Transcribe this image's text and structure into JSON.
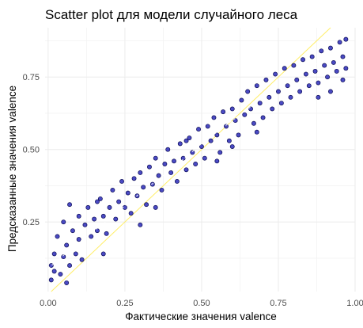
{
  "chart_data": {
    "type": "scatter",
    "title": "Scatter plot для модели случайного леса",
    "xlabel": "Фактические значения valence",
    "ylabel": "Предсказанные значения valence",
    "xlim": [
      -0.01,
      1.0
    ],
    "ylim": [
      0.01,
      0.92
    ],
    "x_ticks": [
      0.0,
      0.25,
      0.5,
      0.75,
      1.0
    ],
    "x_tick_labels": [
      "0.00",
      "0.25",
      "0.50",
      "0.75",
      "1.00"
    ],
    "y_ticks": [
      0.25,
      0.5,
      0.75
    ],
    "y_tick_labels": [
      "0.25",
      "0.50",
      "0.75"
    ],
    "grid": true,
    "reference_line": {
      "slope": 1,
      "intercept": 0,
      "color": "#ffee66"
    },
    "point_fill": "#2a2ab8",
    "point_stroke": "#0b0b55",
    "trend_points": [
      [
        0.0,
        0.09
      ],
      [
        0.1,
        0.18
      ],
      [
        0.2,
        0.26
      ],
      [
        0.3,
        0.35
      ],
      [
        0.4,
        0.43
      ],
      [
        0.5,
        0.52
      ],
      [
        0.6,
        0.6
      ],
      [
        0.7,
        0.68
      ],
      [
        0.8,
        0.75
      ],
      [
        0.9,
        0.81
      ],
      [
        0.97,
        0.86
      ]
    ],
    "points": [
      [
        0.01,
        0.05
      ],
      [
        0.01,
        0.1
      ],
      [
        0.02,
        0.14
      ],
      [
        0.02,
        0.08
      ],
      [
        0.03,
        0.2
      ],
      [
        0.04,
        0.07
      ],
      [
        0.05,
        0.13
      ],
      [
        0.05,
        0.25
      ],
      [
        0.06,
        0.17
      ],
      [
        0.07,
        0.1
      ],
      [
        0.07,
        0.31
      ],
      [
        0.08,
        0.22
      ],
      [
        0.09,
        0.14
      ],
      [
        0.1,
        0.27
      ],
      [
        0.1,
        0.19
      ],
      [
        0.11,
        0.12
      ],
      [
        0.12,
        0.24
      ],
      [
        0.13,
        0.3
      ],
      [
        0.14,
        0.2
      ],
      [
        0.15,
        0.26
      ],
      [
        0.16,
        0.22
      ],
      [
        0.17,
        0.33
      ],
      [
        0.18,
        0.27
      ],
      [
        0.19,
        0.21
      ],
      [
        0.2,
        0.3
      ],
      [
        0.21,
        0.36
      ],
      [
        0.22,
        0.26
      ],
      [
        0.23,
        0.32
      ],
      [
        0.24,
        0.39
      ],
      [
        0.25,
        0.3
      ],
      [
        0.26,
        0.35
      ],
      [
        0.27,
        0.28
      ],
      [
        0.28,
        0.4
      ],
      [
        0.29,
        0.34
      ],
      [
        0.3,
        0.42
      ],
      [
        0.31,
        0.37
      ],
      [
        0.32,
        0.31
      ],
      [
        0.33,
        0.44
      ],
      [
        0.34,
        0.38
      ],
      [
        0.35,
        0.47
      ],
      [
        0.36,
        0.41
      ],
      [
        0.37,
        0.36
      ],
      [
        0.38,
        0.45
      ],
      [
        0.39,
        0.5
      ],
      [
        0.4,
        0.42
      ],
      [
        0.41,
        0.46
      ],
      [
        0.42,
        0.39
      ],
      [
        0.43,
        0.52
      ],
      [
        0.44,
        0.47
      ],
      [
        0.45,
        0.43
      ],
      [
        0.46,
        0.54
      ],
      [
        0.47,
        0.49
      ],
      [
        0.48,
        0.45
      ],
      [
        0.49,
        0.57
      ],
      [
        0.5,
        0.51
      ],
      [
        0.51,
        0.47
      ],
      [
        0.52,
        0.58
      ],
      [
        0.53,
        0.53
      ],
      [
        0.54,
        0.61
      ],
      [
        0.55,
        0.55
      ],
      [
        0.56,
        0.49
      ],
      [
        0.57,
        0.63
      ],
      [
        0.58,
        0.58
      ],
      [
        0.59,
        0.53
      ],
      [
        0.6,
        0.64
      ],
      [
        0.61,
        0.6
      ],
      [
        0.62,
        0.55
      ],
      [
        0.63,
        0.67
      ],
      [
        0.64,
        0.62
      ],
      [
        0.65,
        0.7
      ],
      [
        0.66,
        0.64
      ],
      [
        0.67,
        0.59
      ],
      [
        0.68,
        0.72
      ],
      [
        0.69,
        0.66
      ],
      [
        0.7,
        0.61
      ],
      [
        0.71,
        0.74
      ],
      [
        0.72,
        0.68
      ],
      [
        0.73,
        0.64
      ],
      [
        0.74,
        0.76
      ],
      [
        0.75,
        0.7
      ],
      [
        0.76,
        0.66
      ],
      [
        0.77,
        0.78
      ],
      [
        0.78,
        0.72
      ],
      [
        0.79,
        0.68
      ],
      [
        0.8,
        0.79
      ],
      [
        0.81,
        0.74
      ],
      [
        0.82,
        0.7
      ],
      [
        0.83,
        0.81
      ],
      [
        0.84,
        0.76
      ],
      [
        0.85,
        0.72
      ],
      [
        0.86,
        0.82
      ],
      [
        0.87,
        0.77
      ],
      [
        0.88,
        0.73
      ],
      [
        0.89,
        0.84
      ],
      [
        0.9,
        0.79
      ],
      [
        0.91,
        0.75
      ],
      [
        0.92,
        0.85
      ],
      [
        0.93,
        0.8
      ],
      [
        0.94,
        0.77
      ],
      [
        0.95,
        0.87
      ],
      [
        0.96,
        0.82
      ],
      [
        0.97,
        0.88
      ],
      [
        0.97,
        0.78
      ],
      [
        0.96,
        0.74
      ],
      [
        0.88,
        0.68
      ],
      [
        0.92,
        0.7
      ],
      [
        0.68,
        0.56
      ],
      [
        0.6,
        0.51
      ],
      [
        0.45,
        0.53
      ],
      [
        0.3,
        0.24
      ],
      [
        0.16,
        0.32
      ],
      [
        0.06,
        0.04
      ],
      [
        0.18,
        0.14
      ],
      [
        0.35,
        0.3
      ],
      [
        0.55,
        0.46
      ]
    ]
  }
}
